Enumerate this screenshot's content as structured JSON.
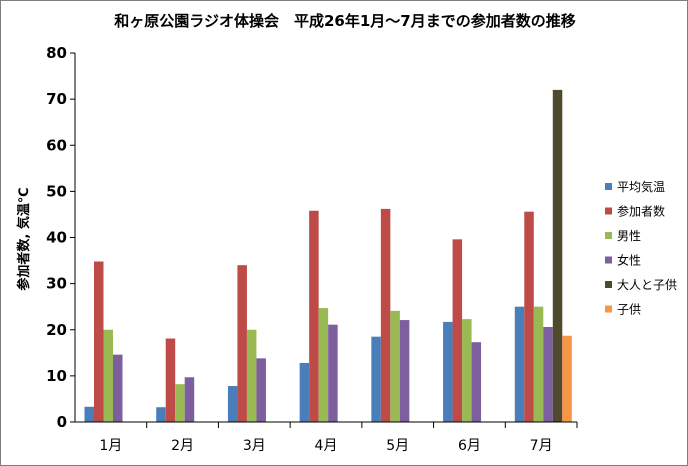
{
  "chart_data": {
    "type": "bar",
    "title": "和ヶ原公園ラジオ体操会　平成26年1月～7月までの参加者数の推移",
    "xlabel": "",
    "ylabel": "参加者数, 気温℃",
    "ylim": [
      0,
      80
    ],
    "yticks": [
      0,
      10,
      20,
      30,
      40,
      50,
      60,
      70,
      80
    ],
    "grid": false,
    "legend_position": "right",
    "categories": [
      "1月",
      "2月",
      "3月",
      "4月",
      "5月",
      "6月",
      "7月"
    ],
    "series": [
      {
        "name": "平均気温",
        "color": "#4a7ebb",
        "values": [
          3.3,
          3.2,
          7.8,
          12.8,
          18.5,
          21.7,
          25.0
        ]
      },
      {
        "name": "参加者数",
        "color": "#be4b48",
        "values": [
          34.8,
          18.1,
          34.0,
          45.8,
          46.2,
          39.6,
          45.6
        ]
      },
      {
        "name": "男性",
        "color": "#98b954",
        "values": [
          20.0,
          8.2,
          20.0,
          24.7,
          24.1,
          22.3,
          25.0
        ]
      },
      {
        "name": "女性",
        "color": "#7d5fa0",
        "values": [
          14.6,
          9.7,
          13.8,
          21.1,
          22.1,
          17.3,
          20.6
        ]
      },
      {
        "name": "大人と子供",
        "color": "#4f4a2e",
        "values": [
          null,
          null,
          null,
          null,
          null,
          null,
          72.0
        ]
      },
      {
        "name": "子供",
        "color": "#f79646",
        "values": [
          null,
          null,
          null,
          null,
          null,
          null,
          18.7
        ]
      }
    ]
  }
}
